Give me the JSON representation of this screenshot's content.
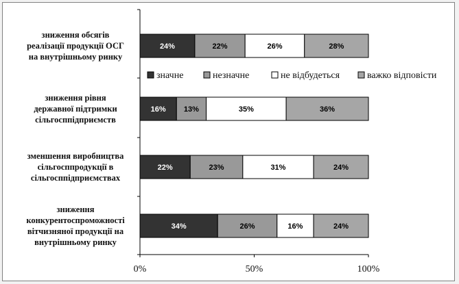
{
  "chart_data": {
    "type": "bar",
    "orientation": "horizontal",
    "stacked": true,
    "percent": true,
    "title": "",
    "xlabel": "",
    "ylabel": "",
    "xlim": [
      0,
      100
    ],
    "x_ticks": [
      "0%",
      "50%",
      "100%"
    ],
    "grid": false,
    "legend_position": "top-right",
    "categories": [
      [
        "зниження обсягів",
        "реалізації продукції ОСГ",
        "на внутрішньому ринку"
      ],
      [
        "зниження рівня",
        "державної підтримки",
        "сільгосппідприємств"
      ],
      [
        "зменшення виробництва",
        "сільгосппродукції в",
        "сільгосппідприємствах"
      ],
      [
        "зниження",
        "конкурентоспроможності",
        "вітчизняної продукції на",
        "внутрішньому ринку"
      ]
    ],
    "series": [
      {
        "name": "значне",
        "color": "#333333",
        "label_color": "#ffffff",
        "values": [
          24,
          16,
          22,
          34
        ],
        "labels": [
          "24%",
          "16%",
          "22%",
          "34%"
        ]
      },
      {
        "name": "незначне",
        "color": "#999999",
        "label_color": "#000000",
        "values": [
          22,
          13,
          23,
          26
        ],
        "labels": [
          "22%",
          "13%",
          "23%",
          "26%"
        ]
      },
      {
        "name": "не відбудеться",
        "color": "#ffffff",
        "label_color": "#000000",
        "values": [
          26,
          35,
          31,
          16
        ],
        "labels": [
          "26%",
          "35%",
          "31%",
          "16%"
        ]
      },
      {
        "name": "важко відповісти",
        "color": "#a6a6a6",
        "label_color": "#000000",
        "values": [
          28,
          36,
          24,
          24
        ],
        "labels": [
          "28%",
          "36%",
          "24%",
          "24%"
        ]
      }
    ]
  }
}
